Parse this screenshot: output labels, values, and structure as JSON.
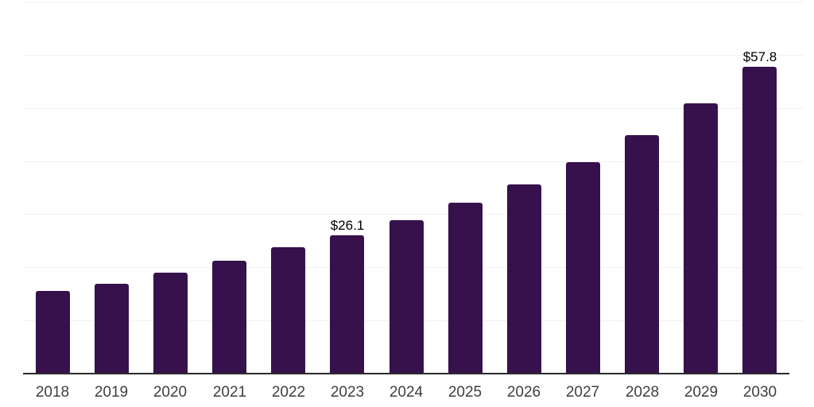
{
  "chart_data": {
    "type": "bar",
    "title": "",
    "xlabel": "",
    "ylabel": "",
    "categories": [
      "2018",
      "2019",
      "2020",
      "2021",
      "2022",
      "2023",
      "2024",
      "2025",
      "2026",
      "2027",
      "2028",
      "2029",
      "2030"
    ],
    "values": [
      15.6,
      16.9,
      19.0,
      21.3,
      23.8,
      26.1,
      28.8,
      32.2,
      35.6,
      39.8,
      44.8,
      50.9,
      57.8
    ],
    "value_labels": {
      "2023": "$26.1",
      "2030": "$57.8"
    },
    "ylim": [
      0,
      70
    ],
    "y_gridline_step": 10,
    "grid": "horizontal",
    "legend_position": "none",
    "colors": {
      "bar": "#36114C",
      "gridline": "#f1f1f1",
      "axis_line": "#2b2b2b",
      "tick_label": "#3f3f3f",
      "value_label": "#000000",
      "background": "#ffffff"
    }
  }
}
